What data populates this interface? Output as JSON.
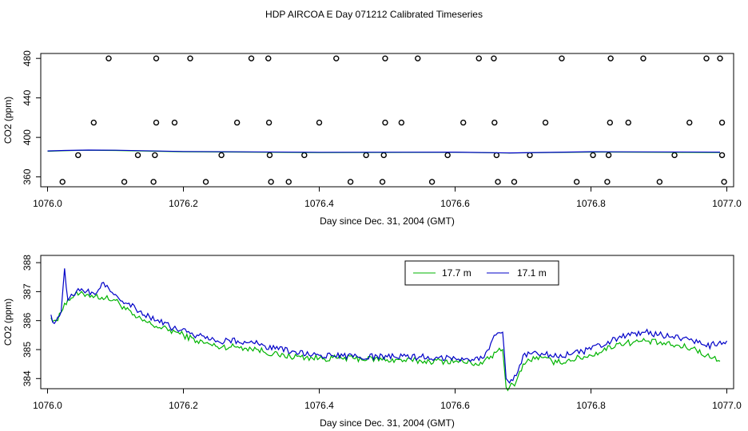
{
  "figure_title": "HDP AIRCOA E  Day 071212  Calibrated Timeseries",
  "colors": {
    "green": "#00b400",
    "blue": "#0000c8",
    "points": "#000000"
  },
  "chart_data": [
    {
      "type": "scatter",
      "xlabel": "Day since Dec. 31, 2004 (GMT)",
      "ylabel": "CO2 (ppm)",
      "xlim": [
        1075.99,
        1077.01
      ],
      "ylim": [
        350,
        485
      ],
      "xticks": [
        1076.0,
        1076.2,
        1076.4,
        1076.6,
        1076.8,
        1077.0
      ],
      "xtick_labels": [
        "1076.0",
        "1076.2",
        "1076.4",
        "1076.6",
        "1076.8",
        "1077.0"
      ],
      "yticks": [
        360,
        400,
        440,
        480
      ],
      "ytick_labels": [
        "360",
        "400",
        "440",
        "480"
      ],
      "points": {
        "y480": [
          1076.09,
          1076.16,
          1076.21,
          1076.3,
          1076.325,
          1076.425,
          1076.497,
          1076.545,
          1076.635,
          1076.657,
          1076.757,
          1076.829,
          1076.877,
          1076.97,
          1076.99
        ],
        "y415": [
          1076.068,
          1076.16,
          1076.187,
          1076.279,
          1076.326,
          1076.4,
          1076.497,
          1076.521,
          1076.612,
          1076.658,
          1076.733,
          1076.828,
          1076.855,
          1076.945,
          1076.993
        ],
        "y382": [
          1076.045,
          1076.133,
          1076.158,
          1076.256,
          1076.327,
          1076.378,
          1076.469,
          1076.495,
          1076.589,
          1076.661,
          1076.71,
          1076.803,
          1076.826,
          1076.923,
          1076.993
        ],
        "y355": [
          1076.022,
          1076.113,
          1076.156,
          1076.233,
          1076.329,
          1076.355,
          1076.446,
          1076.493,
          1076.566,
          1076.663,
          1076.687,
          1076.779,
          1076.824,
          1076.901,
          1076.996
        ]
      },
      "series": [
        {
          "x": [
            1076.0,
            1076.025,
            1076.06,
            1076.1,
            1076.2,
            1076.4,
            1076.6,
            1076.68,
            1076.8,
            1076.99
          ],
          "values": [
            386,
            386.5,
            387,
            386.8,
            385.5,
            384.7,
            384.9,
            384.2,
            385.2,
            384.8
          ]
        },
        {
          "x": [
            1076.0,
            1076.025,
            1076.06,
            1076.1,
            1076.2,
            1076.4,
            1076.6,
            1076.68,
            1076.8,
            1076.99
          ],
          "values": [
            386.3,
            386.8,
            387.2,
            387,
            385.7,
            384.9,
            385.1,
            384.3,
            385.5,
            385.1
          ]
        }
      ]
    },
    {
      "type": "line",
      "xlabel": "Day since Dec. 31, 2004 (GMT)",
      "ylabel": "CO2 (ppm)",
      "xlim": [
        1075.99,
        1077.01
      ],
      "ylim": [
        383.65,
        388.25
      ],
      "xticks": [
        1076.0,
        1076.2,
        1076.4,
        1076.6,
        1076.8,
        1077.0
      ],
      "xtick_labels": [
        "1076.0",
        "1076.2",
        "1076.4",
        "1076.6",
        "1076.8",
        "1077.0"
      ],
      "yticks": [
        384,
        385,
        386,
        387,
        388
      ],
      "ytick_labels": [
        "384",
        "385",
        "386",
        "387",
        "388"
      ],
      "legend_position": "top-right",
      "series": [
        {
          "name": "17.7 m",
          "x": [
            1076.005,
            1076.015,
            1076.025,
            1076.04,
            1076.06,
            1076.08,
            1076.1,
            1076.13,
            1076.16,
            1076.19,
            1076.22,
            1076.25,
            1076.28,
            1076.31,
            1076.34,
            1076.4,
            1076.45,
            1076.5,
            1076.55,
            1076.6,
            1076.64,
            1076.66,
            1076.67,
            1076.675,
            1076.68,
            1076.69,
            1076.7,
            1076.72,
            1076.75,
            1076.8,
            1076.84,
            1076.88,
            1076.92,
            1076.95,
            1076.97,
            1076.99
          ],
          "values": [
            386.1,
            386.0,
            386.6,
            386.9,
            386.9,
            386.8,
            386.7,
            386.1,
            385.8,
            385.6,
            385.3,
            385.1,
            385.1,
            385.0,
            384.8,
            384.7,
            384.7,
            384.65,
            384.6,
            384.6,
            384.5,
            384.9,
            385.0,
            383.7,
            383.7,
            383.9,
            384.5,
            384.75,
            384.55,
            384.8,
            385.2,
            385.3,
            385.15,
            385.05,
            384.8,
            384.6
          ]
        },
        {
          "name": "17.1 m",
          "x": [
            1076.005,
            1076.01,
            1076.02,
            1076.025,
            1076.03,
            1076.05,
            1076.07,
            1076.08,
            1076.1,
            1076.13,
            1076.16,
            1076.19,
            1076.22,
            1076.25,
            1076.28,
            1076.31,
            1076.34,
            1076.4,
            1076.45,
            1076.5,
            1076.55,
            1076.6,
            1076.64,
            1076.66,
            1076.67,
            1076.675,
            1076.68,
            1076.69,
            1076.7,
            1076.72,
            1076.75,
            1076.8,
            1076.84,
            1076.88,
            1076.92,
            1076.95,
            1076.97,
            1077.0
          ],
          "values": [
            386.2,
            385.9,
            386.3,
            387.8,
            386.7,
            387.1,
            386.9,
            387.3,
            386.9,
            386.4,
            386.0,
            385.7,
            385.5,
            385.3,
            385.3,
            385.2,
            385.0,
            384.8,
            384.75,
            384.75,
            384.75,
            384.7,
            384.7,
            385.5,
            385.6,
            384.0,
            383.85,
            384.1,
            384.8,
            384.9,
            384.75,
            385.0,
            385.4,
            385.6,
            385.45,
            385.3,
            385.1,
            385.3
          ]
        }
      ]
    }
  ]
}
